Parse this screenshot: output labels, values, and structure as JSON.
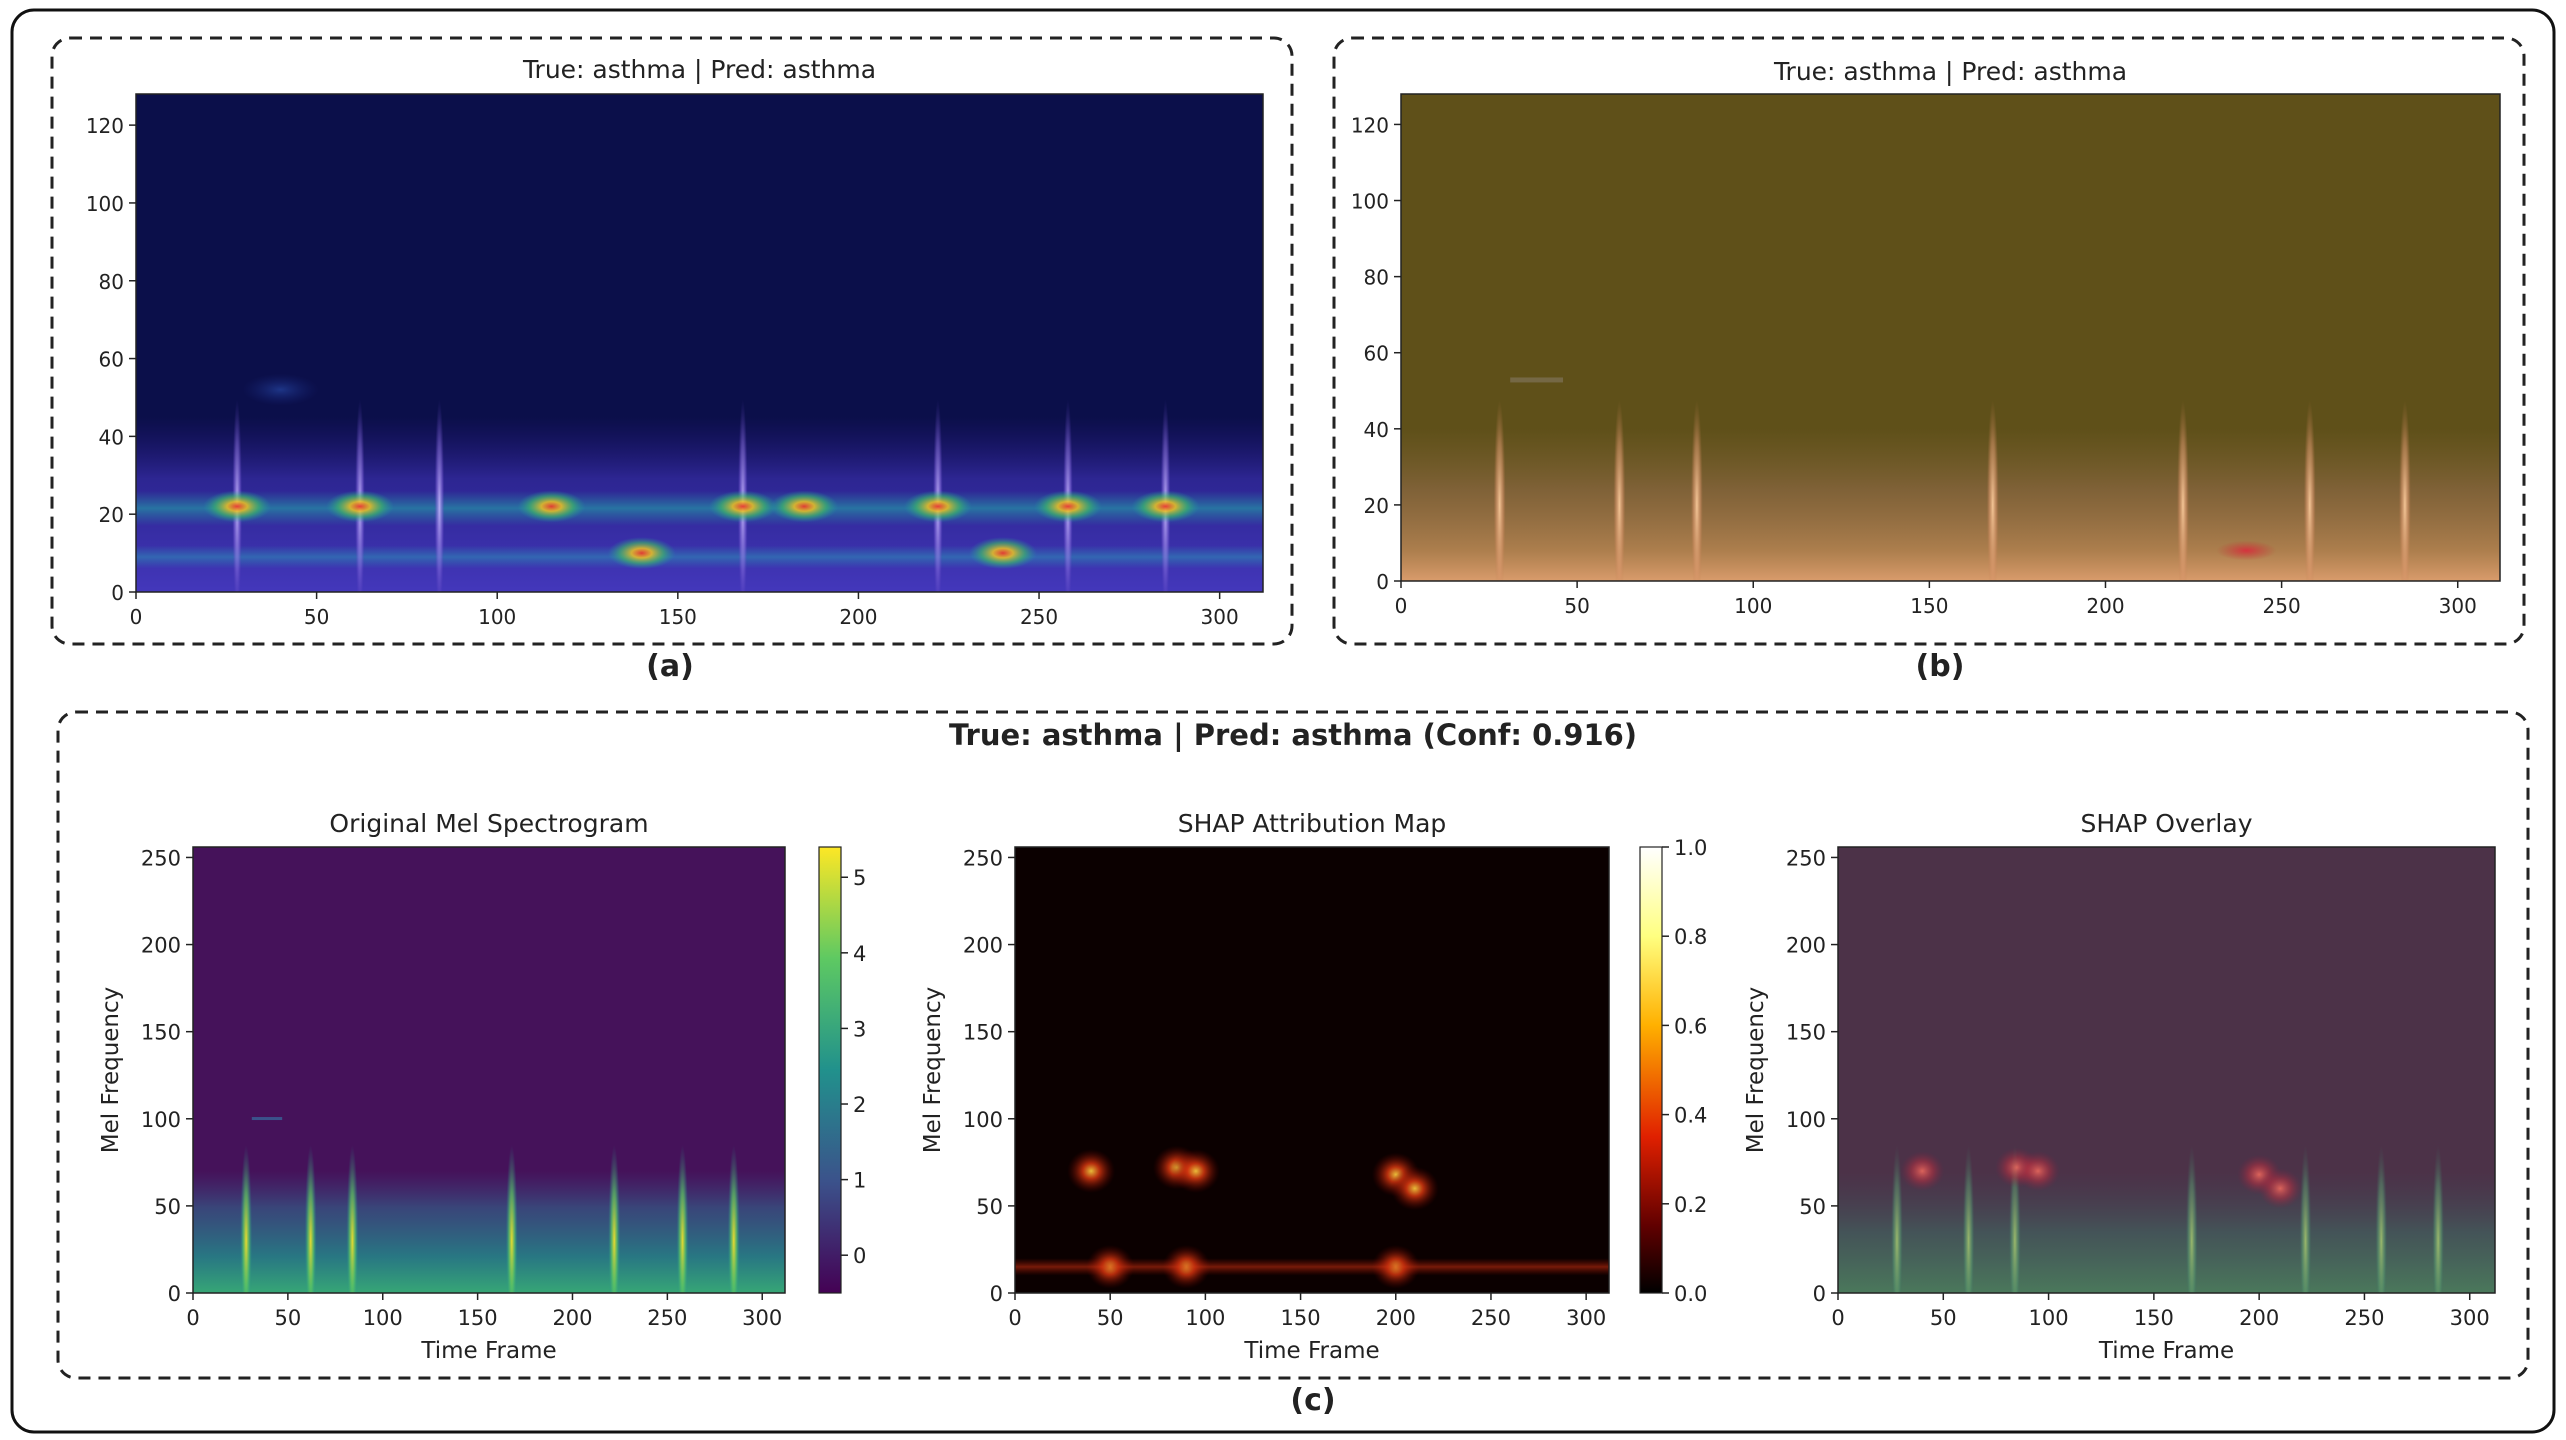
{
  "figure": {
    "panel_a": {
      "caption": "(a)",
      "title": "True: asthma | Pred: asthma"
    },
    "panel_b": {
      "caption": "(b)",
      "title": "True: asthma | Pred: asthma"
    },
    "panel_c": {
      "caption": "(c)",
      "suptitle": "True: asthma | Pred: asthma (Conf: 0.916)",
      "titles": [
        "Original Mel Spectrogram",
        "SHAP Attribution Map",
        "SHAP Overlay"
      ],
      "xlabel": "Time Frame",
      "ylabel": "Mel Frequency"
    }
  },
  "colors": {
    "panel_border": "#222222",
    "axis_text": "#222222",
    "a_background": "#0b0f4a",
    "b_background": "#5f5019",
    "c1_background": "#45125a",
    "c2_background": "#0b0000",
    "c3_background": "#4c3248"
  },
  "chart_data": [
    {
      "id": "a",
      "type": "heatmap",
      "title": "True: asthma | Pred: asthma",
      "xlim": [
        0,
        312
      ],
      "ylim": [
        0,
        128
      ],
      "xticks": [
        0,
        50,
        100,
        150,
        200,
        250,
        300
      ],
      "yticks": [
        0,
        20,
        40,
        60,
        80,
        100,
        120
      ],
      "xlabel": "",
      "ylabel": "",
      "colormap": "Grad-CAM overlay (dark blue background, yellow-green hotspots)",
      "hotspots_time_freq": [
        [
          28,
          22
        ],
        [
          62,
          22
        ],
        [
          115,
          22
        ],
        [
          168,
          22
        ],
        [
          185,
          22
        ],
        [
          222,
          22
        ],
        [
          258,
          22
        ],
        [
          285,
          22
        ],
        [
          140,
          10
        ],
        [
          240,
          10
        ]
      ],
      "spike_time_frames": [
        28,
        62,
        84,
        168,
        222,
        258,
        285
      ]
    },
    {
      "id": "b",
      "type": "heatmap",
      "title": "True: asthma | Pred: asthma",
      "xlim": [
        0,
        312
      ],
      "ylim": [
        0,
        128
      ],
      "xticks": [
        0,
        50,
        100,
        150,
        200,
        250,
        300
      ],
      "yticks": [
        0,
        20,
        40,
        60,
        80,
        100,
        120
      ],
      "xlabel": "",
      "ylabel": "",
      "colormap": "olive overlay",
      "spike_time_frames": [
        28,
        62,
        84,
        168,
        222,
        258,
        285
      ]
    },
    {
      "id": "c1",
      "type": "heatmap",
      "title": "Original Mel Spectrogram",
      "xlabel": "Time Frame",
      "ylabel": "Mel Frequency",
      "xlim": [
        0,
        312
      ],
      "ylim": [
        0,
        256
      ],
      "xticks": [
        0,
        50,
        100,
        150,
        200,
        250,
        300
      ],
      "yticks": [
        0,
        50,
        100,
        150,
        200,
        250
      ],
      "colorbar": {
        "ticks": [
          0,
          1,
          2,
          3,
          4,
          5
        ],
        "range": [
          -0.5,
          5.4
        ],
        "colormap": "viridis"
      },
      "spike_time_frames": [
        28,
        62,
        84,
        168,
        222,
        258,
        285
      ]
    },
    {
      "id": "c2",
      "type": "heatmap",
      "title": "SHAP Attribution Map",
      "xlabel": "Time Frame",
      "ylabel": "Mel Frequency",
      "xlim": [
        0,
        312
      ],
      "ylim": [
        0,
        256
      ],
      "xticks": [
        0,
        50,
        100,
        150,
        200,
        250,
        300
      ],
      "yticks": [
        0,
        50,
        100,
        150,
        200,
        250
      ],
      "colorbar": {
        "ticks": [
          0.0,
          0.2,
          0.4,
          0.6,
          0.8,
          1.0
        ],
        "range": [
          0,
          1
        ],
        "colormap": "hot"
      },
      "hotspots_time_freq": [
        [
          40,
          70
        ],
        [
          85,
          72
        ],
        [
          95,
          70
        ],
        [
          200,
          68
        ],
        [
          210,
          60
        ],
        [
          50,
          15
        ],
        [
          90,
          15
        ],
        [
          200,
          15
        ]
      ]
    },
    {
      "id": "c3",
      "type": "heatmap",
      "title": "SHAP Overlay",
      "xlabel": "Time Frame",
      "ylabel": "Mel Frequency",
      "xlim": [
        0,
        312
      ],
      "ylim": [
        0,
        256
      ],
      "xticks": [
        0,
        50,
        100,
        150,
        200,
        250,
        300
      ],
      "yticks": [
        0,
        50,
        100,
        150,
        200,
        250
      ],
      "hotspots_time_freq": [
        [
          40,
          70
        ],
        [
          85,
          72
        ],
        [
          95,
          70
        ],
        [
          200,
          68
        ],
        [
          210,
          60
        ]
      ],
      "spike_time_frames": [
        28,
        62,
        84,
        168,
        222,
        258,
        285
      ]
    }
  ]
}
